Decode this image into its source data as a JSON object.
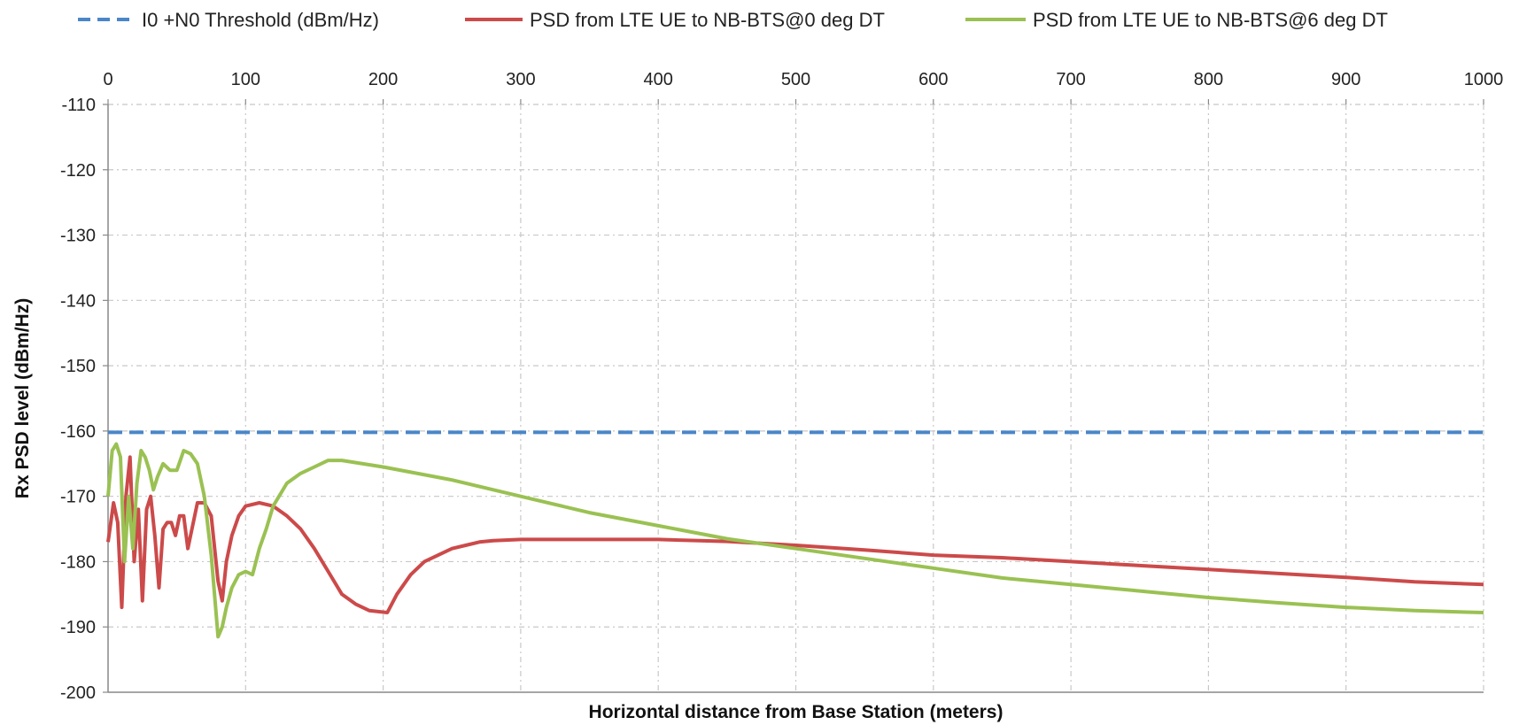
{
  "chart_data": {
    "type": "line",
    "title": "",
    "xlabel": "Horizontal distance from Base Station (meters)",
    "ylabel": "Rx PSD level (dBm/Hz)",
    "xlim": [
      0,
      1000
    ],
    "ylim": [
      -200,
      -110
    ],
    "x_ticks": [
      "0",
      "100",
      "200",
      "300",
      "400",
      "500",
      "600",
      "700",
      "800",
      "900",
      "1000"
    ],
    "y_ticks": [
      "-110",
      "-120",
      "-130",
      "-140",
      "-150",
      "-160",
      "-170",
      "-180",
      "-190",
      "-200"
    ],
    "x_axis_position": "top",
    "grid": true,
    "legend_position": "top",
    "series": [
      {
        "name": "I0 +N0 Threshold (dBm/Hz)",
        "color": "#4a86c8",
        "dash": true,
        "x": [
          0,
          1000
        ],
        "y": [
          -160.2,
          -160.2
        ]
      },
      {
        "name": "PSD from LTE UE to NB-BTS@0 deg DT",
        "color": "#cc4a4a",
        "dash": false,
        "x": [
          0,
          4,
          7,
          10,
          13,
          16,
          19,
          22,
          25,
          28,
          31,
          34,
          37,
          40,
          43,
          46,
          49,
          52,
          55,
          58,
          61,
          65,
          70,
          75,
          80,
          83,
          86,
          90,
          95,
          100,
          110,
          120,
          130,
          140,
          150,
          160,
          170,
          180,
          190,
          203,
          210,
          220,
          230,
          240,
          250,
          260,
          270,
          280,
          300,
          350,
          400,
          430,
          450,
          500,
          550,
          600,
          650,
          700,
          750,
          800,
          850,
          900,
          950,
          1000
        ],
        "y": [
          -177,
          -171,
          -174,
          -187,
          -170,
          -164,
          -180,
          -172,
          -186,
          -172,
          -170,
          -176,
          -184,
          -175,
          -174,
          -174,
          -176,
          -173,
          -173,
          -178,
          -175,
          -171,
          -171,
          -173,
          -183,
          -186,
          -180,
          -176,
          -173,
          -171.5,
          -171,
          -171.5,
          -173,
          -175,
          -178,
          -181.5,
          -185,
          -186.5,
          -187.5,
          -187.8,
          -185,
          -182,
          -180,
          -179,
          -178,
          -177.5,
          -177,
          -176.8,
          -176.6,
          -176.6,
          -176.6,
          -176.8,
          -176.9,
          -177.5,
          -178.2,
          -179,
          -179.4,
          -180,
          -180.6,
          -181.2,
          -181.8,
          -182.4,
          -183.1,
          -183.5
        ]
      },
      {
        "name": "PSD from LTE UE to NB-BTS@6 deg DT",
        "color": "#9ac152",
        "dash": false,
        "x": [
          0,
          3,
          6,
          9,
          12,
          15,
          18,
          21,
          24,
          27,
          30,
          33,
          36,
          40,
          45,
          50,
          55,
          60,
          65,
          70,
          75,
          80,
          83,
          86,
          90,
          95,
          100,
          105,
          110,
          115,
          120,
          130,
          140,
          150,
          160,
          170,
          200,
          250,
          300,
          350,
          400,
          450,
          500,
          550,
          600,
          650,
          700,
          750,
          800,
          850,
          900,
          950,
          1000
        ],
        "y": [
          -170,
          -163,
          -162,
          -164,
          -180,
          -170,
          -178,
          -168,
          -163,
          -164,
          -166,
          -169,
          -167,
          -165,
          -166,
          -166,
          -163,
          -163.5,
          -165,
          -170,
          -179,
          -191.5,
          -190,
          -187,
          -184,
          -182,
          -181.5,
          -182,
          -178,
          -175,
          -171.5,
          -168,
          -166.5,
          -165.5,
          -164.5,
          -164.5,
          -165.5,
          -167.5,
          -170,
          -172.5,
          -174.5,
          -176.5,
          -178,
          -179.5,
          -181,
          -182.5,
          -183.5,
          -184.5,
          -185.5,
          -186.3,
          -187,
          -187.5,
          -187.8
        ]
      }
    ]
  }
}
